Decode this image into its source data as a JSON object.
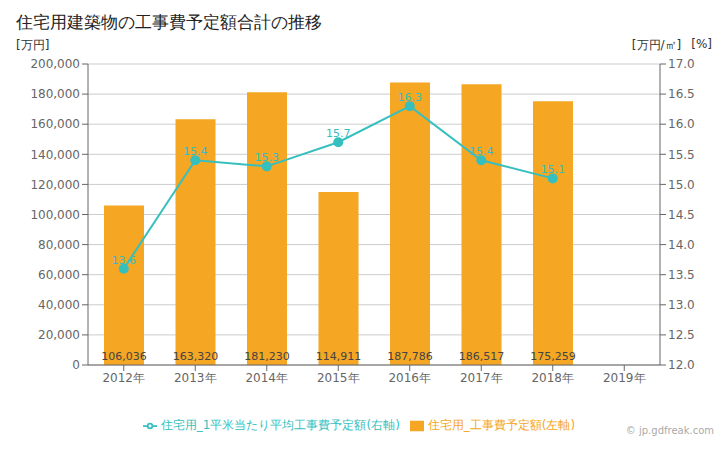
{
  "chart_data": {
    "type": "bar",
    "title": "住宅用建築物の工事費予定額合計の推移",
    "categories": [
      "2012年",
      "2013年",
      "2014年",
      "2015年",
      "2016年",
      "2017年",
      "2018年",
      "2019年"
    ],
    "series": [
      {
        "name": "住宅用_工事費予定額(左軸)",
        "type": "bar",
        "color": "#f5a623",
        "values": [
          106036,
          163320,
          181230,
          114911,
          187786,
          186517,
          175259,
          null
        ],
        "value_labels": [
          "106,036",
          "163,320",
          "181,230",
          "114,911",
          "187,786",
          "186,517",
          "175,259",
          null
        ]
      },
      {
        "name": "住宅用_1平米当たり平均工事費予定額(右軸)",
        "type": "line",
        "axis": "y2",
        "color": "#36bfbf",
        "marker": "o",
        "values": [
          13.6,
          15.4,
          15.3,
          15.7,
          16.3,
          15.4,
          15.1,
          null
        ],
        "data_labels": true
      }
    ],
    "ylabel": "[万円]",
    "y2label": [
      "[万円/㎡]",
      "[%]"
    ],
    "ylim": [
      0,
      200000
    ],
    "yticks": [
      0,
      {
        "value": 20000,
        "label": "20,000"
      },
      {
        "value": 40000,
        "label": "40,000"
      },
      {
        "value": 60000,
        "label": "60,000"
      },
      {
        "value": 80000,
        "label": "80,000"
      },
      {
        "value": 100000,
        "label": "100,000"
      },
      {
        "value": 120000,
        "label": "120,000"
      },
      {
        "value": 140000,
        "label": "140,000"
      },
      {
        "value": 160000,
        "label": "160,000"
      },
      {
        "value": 180000,
        "label": "180,000"
      },
      {
        "value": 200000,
        "label": "200,000"
      }
    ],
    "y2lim": [
      12.0,
      17.0
    ],
    "y2ticks": [
      {
        "value": 12.0,
        "label": "12.0"
      },
      12.5,
      {
        "value": 13.0,
        "label": "13.0"
      },
      13.5,
      {
        "value": 14.0,
        "label": "14.0"
      },
      14.5,
      {
        "value": 15.0,
        "label": "15.0"
      },
      15.5,
      {
        "value": 16.0,
        "label": "16.0"
      },
      16.5,
      {
        "value": 17.0,
        "label": "17.0"
      }
    ],
    "grid": true,
    "legend": "bottom",
    "annotations": [
      "© jp.gdfreak.com"
    ]
  }
}
